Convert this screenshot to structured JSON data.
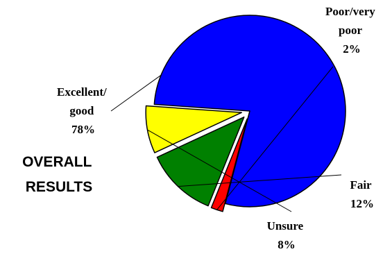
{
  "chart_data": {
    "type": "pie",
    "title_lines": [
      "OVERALL",
      "RESULTS"
    ],
    "slices": [
      {
        "label_lines": [
          "Excellent/",
          "good",
          "78%"
        ],
        "value": 78,
        "color": "#0000ff",
        "exploded": false
      },
      {
        "label_lines": [
          "Poor/very",
          "poor",
          "2%"
        ],
        "value": 2,
        "color": "#ff0000",
        "exploded": true
      },
      {
        "label_lines": [
          "Fair",
          "12%"
        ],
        "value": 12,
        "color": "#008000",
        "exploded": true
      },
      {
        "label_lines": [
          "Unsure",
          "8%"
        ],
        "value": 8,
        "color": "#ffff00",
        "exploded": true
      }
    ]
  }
}
